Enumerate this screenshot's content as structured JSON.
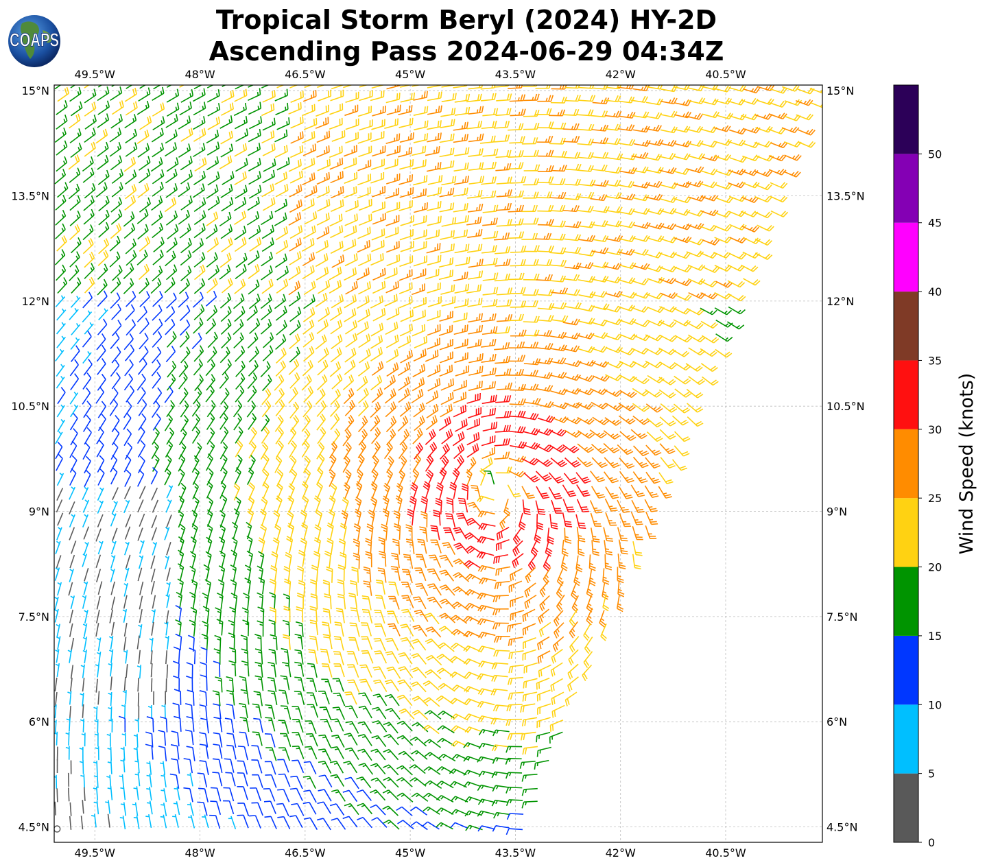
{
  "title": {
    "line1": "Tropical Storm Beryl (2024) HY-2D",
    "line2": "Ascending Pass 2024-06-29 04:34Z"
  },
  "logo": {
    "text": "COAPS",
    "icon": "globe-logo-icon"
  },
  "map": {
    "lon_ticks": [
      "49.5°W",
      "48°W",
      "46.5°W",
      "45°W",
      "43.5°W",
      "42°W",
      "40.5°W"
    ],
    "lat_ticks": [
      "15°N",
      "13.5°N",
      "12°N",
      "10.5°N",
      "9°N",
      "7.5°N",
      "6°N",
      "4.5°N"
    ],
    "lon_values": [
      -49.5,
      -48,
      -46.5,
      -45,
      -43.5,
      -42,
      -40.5
    ],
    "lat_values": [
      15,
      13.5,
      12,
      10.5,
      9,
      7.5,
      6,
      4.5
    ],
    "lon_range": [
      -50.08,
      -39.12
    ],
    "lat_range": [
      4.28,
      15.08
    ],
    "storm_center": {
      "lon": -43.8,
      "lat": 9.4
    },
    "grid": true
  },
  "colorbar": {
    "label": "Wind Speed (knots)",
    "tick_labels": [
      "0",
      "5",
      "10",
      "15",
      "20",
      "25",
      "30",
      "35",
      "40",
      "45",
      "50"
    ],
    "bins": [
      {
        "min": 0,
        "max": 5,
        "color": "#595959"
      },
      {
        "min": 5,
        "max": 10,
        "color": "#00bfff"
      },
      {
        "min": 10,
        "max": 15,
        "color": "#0037ff"
      },
      {
        "min": 15,
        "max": 20,
        "color": "#009400"
      },
      {
        "min": 20,
        "max": 25,
        "color": "#ffd212"
      },
      {
        "min": 25,
        "max": 30,
        "color": "#ff8c00"
      },
      {
        "min": 30,
        "max": 35,
        "color": "#ff1010"
      },
      {
        "min": 35,
        "max": 40,
        "color": "#7f3a26"
      },
      {
        "min": 40,
        "max": 45,
        "color": "#ff00ff"
      },
      {
        "min": 45,
        "max": 50,
        "color": "#8400b4"
      },
      {
        "min": 50,
        "max": 55,
        "color": "#2c0058"
      }
    ]
  }
}
